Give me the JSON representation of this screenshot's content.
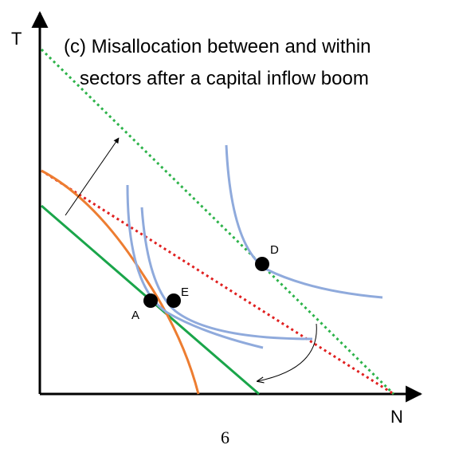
{
  "title_lines": [
    "(c) Misallocation between and within",
    "sectors after a capital inflow boom"
  ],
  "axis": {
    "y_label": "T",
    "x_label": "N"
  },
  "points": [
    {
      "id": "A",
      "label": "A"
    },
    {
      "id": "E",
      "label": "E"
    },
    {
      "id": "D",
      "label": "D"
    }
  ],
  "page_number": "6",
  "colors": {
    "axis": "#000000",
    "green_budget": "#1aa54a",
    "orange_ppf": "#ed7d31",
    "red_dotted": "#e02020",
    "green_dotted": "#2db34a",
    "indifference": "#8faadc",
    "point": "#000000"
  }
}
